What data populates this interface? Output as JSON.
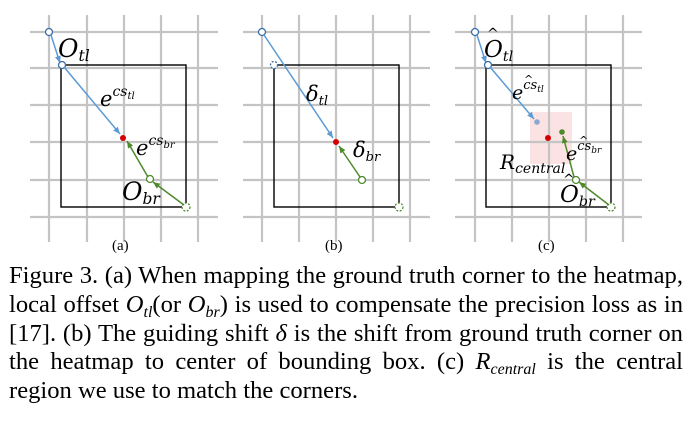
{
  "panels": [
    {
      "sublabel": "(a)",
      "labels": {
        "corner": {
          "base": "O",
          "sub": "tl",
          "hat": false
        },
        "exp_tl": {
          "base": "e",
          "sup": "cs",
          "supsub": "tl",
          "hat": false
        },
        "exp_br": {
          "base": "e",
          "sup": "cs",
          "supsub": "br",
          "hat": false
        },
        "offset_br": {
          "base": "O",
          "sub": "br",
          "hat": false
        }
      }
    },
    {
      "sublabel": "(b)",
      "labels": {
        "delta_tl": {
          "base": "δ",
          "sub": "tl"
        },
        "delta_br": {
          "base": "δ",
          "sub": "br"
        }
      }
    },
    {
      "sublabel": "(c)",
      "labels": {
        "corner": {
          "base": "O",
          "sub": "tl",
          "hat": true
        },
        "exp_tl": {
          "base": "e",
          "sup": "cs",
          "supsub": "tl",
          "hat": true
        },
        "exp_br": {
          "base": "e",
          "sup": "cs",
          "supsub": "br",
          "hat": true
        },
        "region": {
          "base": "R",
          "sub": "central"
        },
        "offset_br": {
          "base": "O",
          "sub": "br",
          "hat": true
        }
      }
    }
  ],
  "colors": {
    "grid": "#c4c4c4",
    "blue_arrow": "#5b9bd5",
    "green_arrow": "#4e8a2c",
    "center_dot": "#d40000",
    "central_region": "#fbe3e3"
  },
  "caption": {
    "p1": "Figure 3. (a) When mapping the ground truth corner to the heatmap, local offset ",
    "m1_base": "O",
    "m1_sub": "tl",
    "p2": "(or ",
    "m2_base": "O",
    "m2_sub": "br",
    "p3": ") is used to compensate the precision loss as in [17]. (b) The guiding shift ",
    "m3": "δ",
    "p4": " is the shift from ground truth corner on the heatmap to center of bounding box. (c) ",
    "m4_base": "R",
    "m4_sub": "central",
    "p5": " is the central region we use to match the corners."
  }
}
